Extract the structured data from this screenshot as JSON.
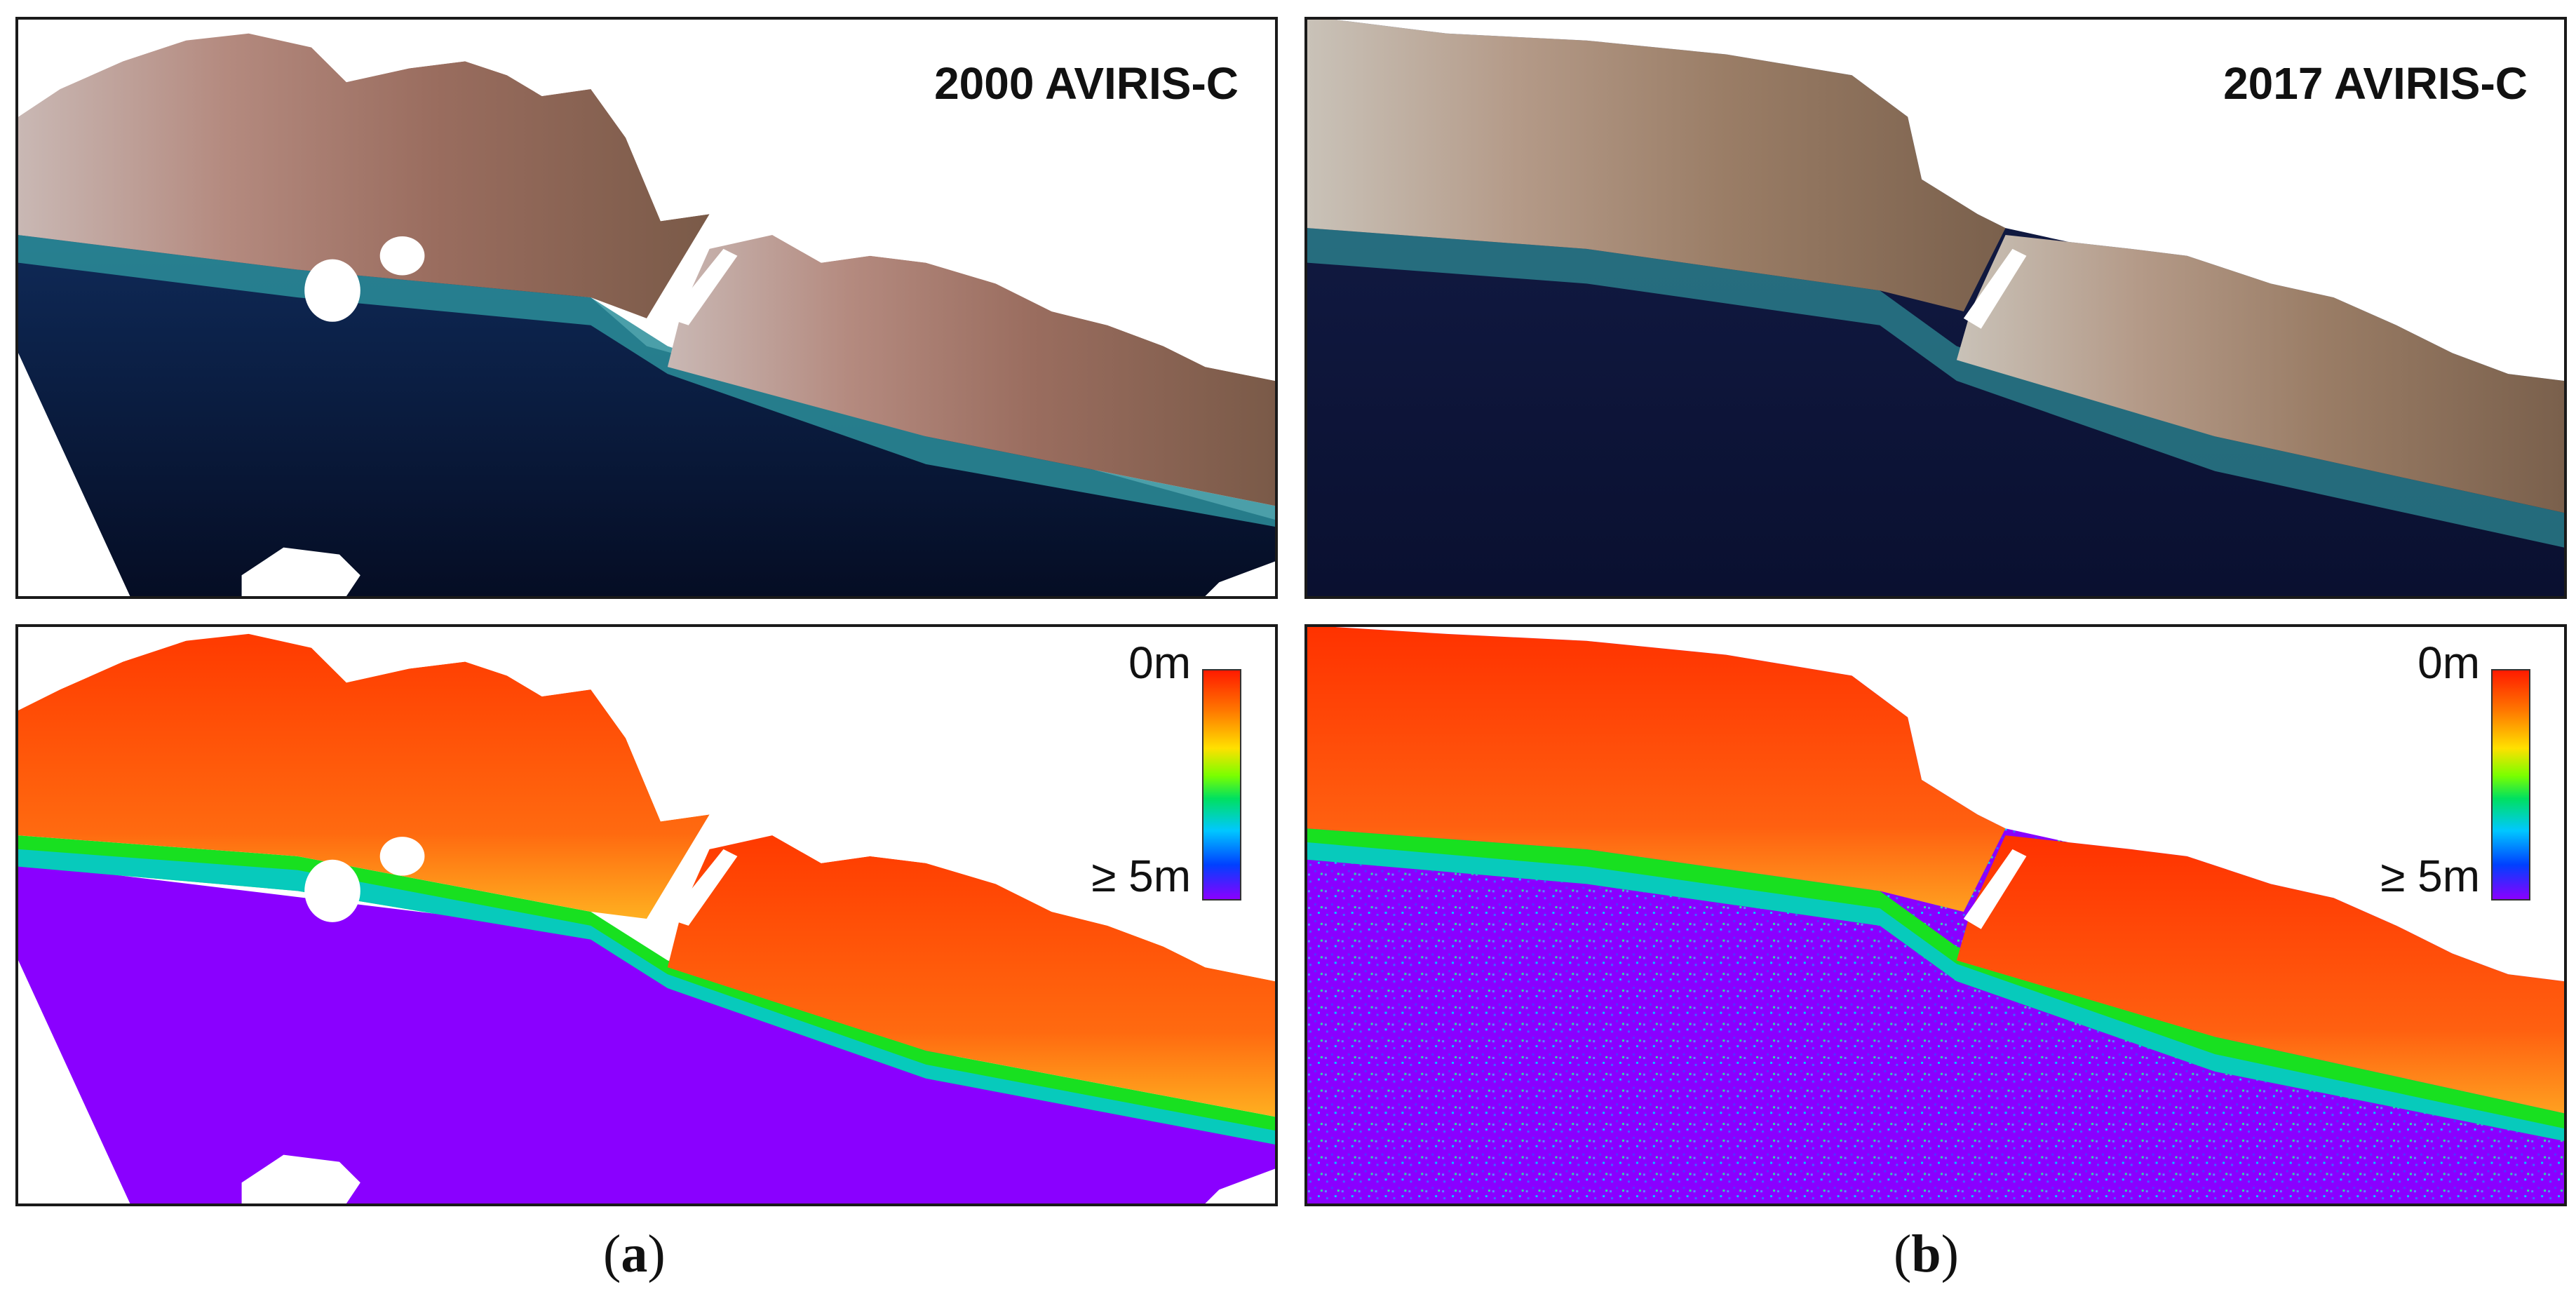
{
  "panels": {
    "a_top": {
      "title": "2000 AVIRIS-C"
    },
    "b_top": {
      "title": "2017 AVIRIS-C"
    },
    "a_bottom": {
      "colorbar_top": "0m",
      "colorbar_bottom": "≥ 5m"
    },
    "b_bottom": {
      "colorbar_top": "0m",
      "colorbar_bottom": "≥ 5m"
    }
  },
  "captions": {
    "a": "a",
    "b": "b"
  },
  "colors": {
    "deep_water_rgb": "#0a1a3a",
    "reef_rgb": "#a8746a",
    "shallow_rgb": "#2c8e9a",
    "deep_depth": "#8a00ff",
    "shallow_depth": "#ff4a00"
  }
}
